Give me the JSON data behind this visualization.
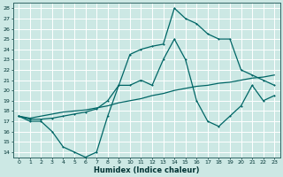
{
  "xlabel": "Humidex (Indice chaleur)",
  "bg_color": "#cce8e4",
  "grid_color": "#ffffff",
  "line_color": "#006666",
  "xlim": [
    -0.5,
    23.5
  ],
  "ylim": [
    13.5,
    28.5
  ],
  "xticks": [
    0,
    1,
    2,
    3,
    4,
    5,
    6,
    7,
    8,
    9,
    10,
    11,
    12,
    13,
    14,
    15,
    16,
    17,
    18,
    19,
    20,
    21,
    22,
    23
  ],
  "yticks": [
    14,
    15,
    16,
    17,
    18,
    19,
    20,
    21,
    22,
    23,
    24,
    25,
    26,
    27,
    28
  ],
  "line_max_x": [
    0,
    1,
    2,
    3,
    4,
    5,
    6,
    7,
    8,
    9,
    10,
    11,
    12,
    13,
    14,
    15,
    16,
    17,
    18,
    19,
    20,
    21,
    22,
    23
  ],
  "line_max_y": [
    17.5,
    17.2,
    17.2,
    17.3,
    17.5,
    17.7,
    17.9,
    18.2,
    19.0,
    20.5,
    23.5,
    24.0,
    24.3,
    24.5,
    28.0,
    27.0,
    26.5,
    25.5,
    25.0,
    25.0,
    22.0,
    21.5,
    21.0,
    20.5
  ],
  "line_mean_x": [
    0,
    1,
    2,
    3,
    4,
    5,
    6,
    7,
    8,
    9,
    10,
    11,
    12,
    13,
    14,
    15,
    16,
    17,
    18,
    19,
    20,
    21,
    22,
    23
  ],
  "line_mean_y": [
    17.5,
    17.3,
    17.5,
    17.7,
    17.9,
    18.0,
    18.1,
    18.3,
    18.5,
    18.8,
    19.0,
    19.2,
    19.5,
    19.7,
    20.0,
    20.2,
    20.4,
    20.5,
    20.7,
    20.8,
    21.0,
    21.2,
    21.3,
    21.5
  ],
  "line_min_x": [
    0,
    1,
    2,
    3,
    4,
    5,
    6,
    7,
    8,
    9,
    10,
    11,
    12,
    13,
    14,
    15,
    16,
    17,
    18,
    19,
    20,
    21,
    22,
    23
  ],
  "line_min_y": [
    17.5,
    17.0,
    17.0,
    16.0,
    14.5,
    14.0,
    13.5,
    14.0,
    17.5,
    20.5,
    20.5,
    21.0,
    20.5,
    23.0,
    25.0,
    23.0,
    19.0,
    17.0,
    16.5,
    17.5,
    18.5,
    20.5,
    19.0,
    19.5
  ]
}
